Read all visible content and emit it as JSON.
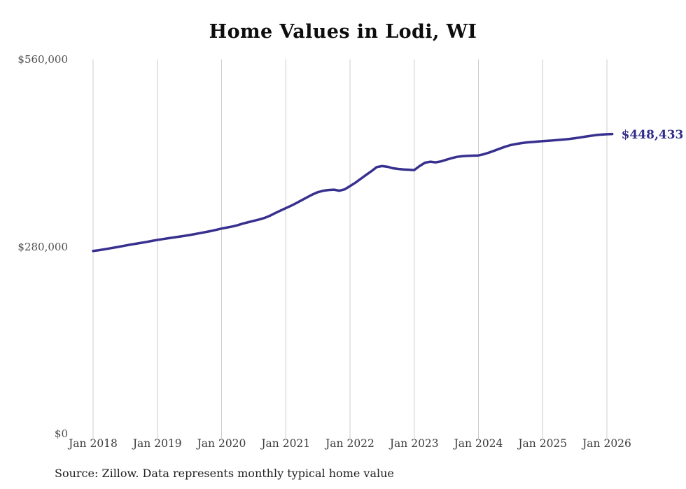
{
  "title": "Home Values in Lodi, WI",
  "source_note": "Source: Zillow. Data represents monthly typical home value",
  "end_label": "$448,433",
  "colors": {
    "line": "#37308f",
    "end_label_text": "#312d8c",
    "gridline": "#cccccc",
    "y_axis_text": "#4d4d4d",
    "x_axis_text": "#3b3b3b",
    "title_text": "#0d0d0d",
    "background": "#ffffff"
  },
  "chart_data": {
    "type": "line",
    "title": "Home Values in Lodi, WI",
    "xlabel": "",
    "ylabel": "",
    "ylim": [
      0,
      560000
    ],
    "y_ticks": [
      {
        "label": "$0",
        "value": 0
      },
      {
        "label": "$280,000",
        "value": 280000
      },
      {
        "label": "$560,000",
        "value": 560000
      }
    ],
    "x_tick_labels": [
      "Jan 2018",
      "Jan 2019",
      "Jan 2020",
      "Jan 2021",
      "Jan 2022",
      "Jan 2023",
      "Jan 2024",
      "Jan 2025",
      "Jan 2026"
    ],
    "grid": "vertical-only",
    "legend": "none",
    "frequency": "monthly",
    "x_start": "Jan 2018",
    "x_end": "Feb 2026",
    "months_per_gridline": 12,
    "final_value": 448433,
    "final_value_label": "$448,433",
    "series": [
      {
        "name": "Typical home value",
        "values": [
          273500,
          274500,
          275800,
          277200,
          278600,
          280000,
          281500,
          283000,
          284300,
          285600,
          287000,
          288500,
          290000,
          291200,
          292400,
          293600,
          294800,
          296000,
          297300,
          298700,
          300200,
          301700,
          303300,
          305100,
          307000,
          308500,
          310000,
          312000,
          314500,
          316500,
          318500,
          320500,
          322800,
          326000,
          330000,
          333800,
          337500,
          341200,
          345200,
          349500,
          353800,
          358000,
          361500,
          363600,
          364700,
          365200,
          363600,
          365600,
          370500,
          375600,
          381400,
          387200,
          392800,
          399000,
          400500,
          399500,
          397200,
          396200,
          395400,
          395000,
          394500,
          400500,
          405500,
          407000,
          406000,
          407500,
          410000,
          412300,
          414300,
          415300,
          415800,
          416100,
          416400,
          418200,
          420700,
          423600,
          426600,
          429500,
          431900,
          433500,
          434800,
          435800,
          436500,
          437100,
          437800,
          438300,
          438900,
          439600,
          440300,
          441100,
          442100,
          443300,
          444600,
          445800,
          446900,
          447600,
          448100,
          448433
        ]
      }
    ]
  }
}
